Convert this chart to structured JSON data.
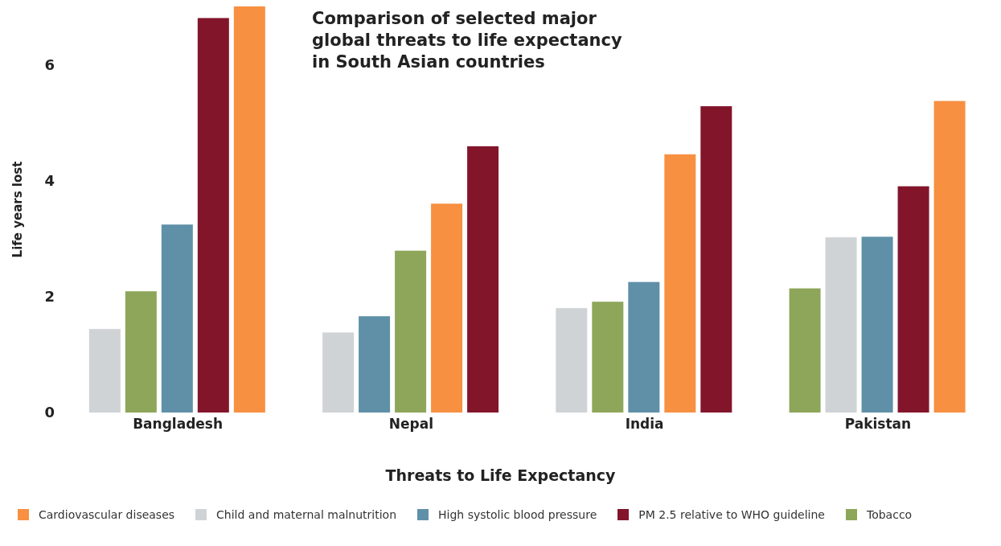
{
  "chart_data": {
    "type": "bar",
    "title": "Comparison of selected major global threats to life expectancy in South Asian countries",
    "xlabel": "Threats to Life Expectancy",
    "ylabel": "Life years lost",
    "categories": [
      "Bangladesh",
      "Nepal",
      "India",
      "Pakistan"
    ],
    "series": [
      {
        "name": "Cardiovascular diseases",
        "color": "#f79041",
        "values": [
          7.0,
          3.6,
          4.45,
          5.37
        ]
      },
      {
        "name": "Child and maternal malnutrition",
        "color": "#d0d3d6",
        "values": [
          1.44,
          1.38,
          1.8,
          3.02
        ]
      },
      {
        "name": "High systolic blood pressure",
        "color": "#5f90a8",
        "values": [
          3.24,
          1.66,
          2.25,
          3.03
        ]
      },
      {
        "name": "PM 2.5 relative to WHO guideline",
        "color": "#83152b",
        "values": [
          6.8,
          4.59,
          5.28,
          3.9
        ]
      },
      {
        "name": "Tobacco",
        "color": "#8ea65a",
        "values": [
          2.09,
          2.79,
          1.91,
          2.14
        ]
      }
    ],
    "ylim": [
      0,
      7
    ],
    "yticks": [
      0,
      2,
      4,
      6
    ],
    "grid": false,
    "legend": "bottom"
  }
}
